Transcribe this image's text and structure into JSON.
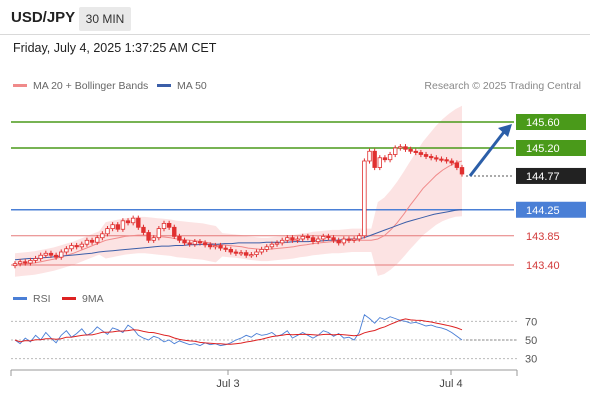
{
  "header": {
    "symbol": "USD/JPY",
    "timeframe": "30 MIN"
  },
  "timestamp": "Friday, July 4, 2025 1:37:25 AM CET",
  "legend": {
    "ma20": "MA 20 + Bollinger Bands",
    "ma50": "MA 50"
  },
  "source": "Research © 2025 Trading Central",
  "colors": {
    "resistance": "#4a9a1a",
    "pivot": "#4a7fd6",
    "support": "#e57a7a",
    "bollinger_fill": "#fbd9d9",
    "ma20": "#f08a8a",
    "ma50": "#3b5ea8",
    "candle": "#e03030",
    "candle_bull": "#2e7d32",
    "last_price_box": "#222222",
    "arrow": "#2b5ea8",
    "rsi": "#4a7fd6",
    "rsi_ma": "#dd2222"
  },
  "chart_data": {
    "type": "candlestick",
    "symbol": "USD/JPY",
    "price_axis_range": [
      143.2,
      146.0
    ],
    "x_tick_labels": [
      "Jul 3",
      "Jul 4"
    ],
    "last_price": 144.77,
    "levels": [
      {
        "value": 145.6,
        "label": "145.60",
        "kind": "resistance"
      },
      {
        "value": 145.2,
        "label": "145.20",
        "kind": "resistance"
      },
      {
        "value": 144.25,
        "label": "144.25",
        "kind": "pivot"
      },
      {
        "value": 143.85,
        "label": "143.85",
        "kind": "support"
      },
      {
        "value": 143.4,
        "label": "143.40",
        "kind": "support"
      }
    ],
    "target_arrow": {
      "from": 144.77,
      "to": 145.6
    },
    "candles_close": [
      143.42,
      143.45,
      143.43,
      143.47,
      143.5,
      143.55,
      143.58,
      143.55,
      143.52,
      143.6,
      143.65,
      143.7,
      143.68,
      143.72,
      143.78,
      143.75,
      143.82,
      143.88,
      143.96,
      144.02,
      143.95,
      144.08,
      144.05,
      144.12,
      143.98,
      143.9,
      143.78,
      143.82,
      143.96,
      144.04,
      143.98,
      143.84,
      143.78,
      143.74,
      143.72,
      143.76,
      143.74,
      143.71,
      143.68,
      143.7,
      143.66,
      143.64,
      143.6,
      143.58,
      143.59,
      143.55,
      143.56,
      143.6,
      143.64,
      143.68,
      143.72,
      143.74,
      143.78,
      143.82,
      143.78,
      143.8,
      143.84,
      143.82,
      143.76,
      143.8,
      143.84,
      143.82,
      143.78,
      143.74,
      143.8,
      143.78,
      143.8,
      143.85,
      145.0,
      145.15,
      144.9,
      145.05,
      145.02,
      145.1,
      145.2,
      145.22,
      145.18,
      145.15,
      145.13,
      145.1,
      145.07,
      145.05,
      145.03,
      145.02,
      145.0,
      144.97,
      144.9,
      144.8
    ],
    "ma20_series": [
      143.4,
      143.41,
      143.42,
      143.43,
      143.45,
      143.47,
      143.49,
      143.52,
      143.55,
      143.58,
      143.62,
      143.66,
      143.7,
      143.74,
      143.78,
      143.8,
      143.82,
      143.84,
      143.85,
      143.86,
      143.86,
      143.85,
      143.84,
      143.83,
      143.82,
      143.8,
      143.79,
      143.78,
      143.77,
      143.76,
      143.74,
      143.72,
      143.71,
      143.7,
      143.69,
      143.68,
      143.66,
      143.65,
      143.64,
      143.64,
      143.65,
      143.66,
      143.67,
      143.68,
      143.7,
      143.71,
      143.73,
      143.74,
      143.75,
      143.76,
      143.76,
      143.77,
      143.78,
      143.78,
      143.78,
      143.78,
      143.8,
      143.85,
      143.94,
      144.05,
      144.18,
      144.32,
      144.45,
      144.58,
      144.68,
      144.78,
      144.86,
      144.92,
      144.97,
      145.0
    ],
    "ma50_series": [
      143.48,
      143.49,
      143.5,
      143.5,
      143.51,
      143.52,
      143.53,
      143.54,
      143.55,
      143.56,
      143.57,
      143.58,
      143.6,
      143.61,
      143.62,
      143.63,
      143.64,
      143.65,
      143.66,
      143.67,
      143.68,
      143.69,
      143.69,
      143.7,
      143.7,
      143.71,
      143.71,
      143.72,
      143.72,
      143.72,
      143.73,
      143.73,
      143.74,
      143.74,
      143.74,
      143.74,
      143.75,
      143.75,
      143.75,
      143.75,
      143.76,
      143.76,
      143.76,
      143.77,
      143.77,
      143.78,
      143.78,
      143.79,
      143.8,
      143.8,
      143.82,
      143.86,
      143.9,
      143.94,
      143.98,
      144.02,
      144.06,
      144.09,
      144.12,
      144.15,
      144.18,
      144.2,
      144.22,
      144.24,
      144.25
    ],
    "rsi_legend": {
      "rsi": "RSI",
      "ma": "9MA"
    },
    "rsi_axis_range": [
      20,
      80
    ],
    "rsi_ticks": [
      70,
      50,
      30
    ],
    "rsi_tick_labels": [
      "70",
      "50",
      "30"
    ],
    "rsi_series": [
      50,
      46,
      52,
      48,
      55,
      50,
      58,
      52,
      47,
      55,
      60,
      53,
      57,
      62,
      55,
      58,
      64,
      60,
      56,
      63,
      61,
      58,
      66,
      62,
      55,
      52,
      50,
      54,
      52,
      48,
      50,
      46,
      49,
      47,
      45,
      46,
      44,
      47,
      45,
      46,
      44,
      45,
      47,
      50,
      52,
      55,
      53,
      57,
      55,
      56,
      58,
      54,
      56,
      60,
      52,
      55,
      58,
      55,
      52,
      55,
      60,
      58,
      54,
      57,
      52,
      53,
      50,
      58,
      77,
      73,
      68,
      74,
      72,
      75,
      73,
      71,
      70,
      68,
      69,
      67,
      65,
      66,
      64,
      63,
      61,
      58,
      54,
      50
    ]
  }
}
